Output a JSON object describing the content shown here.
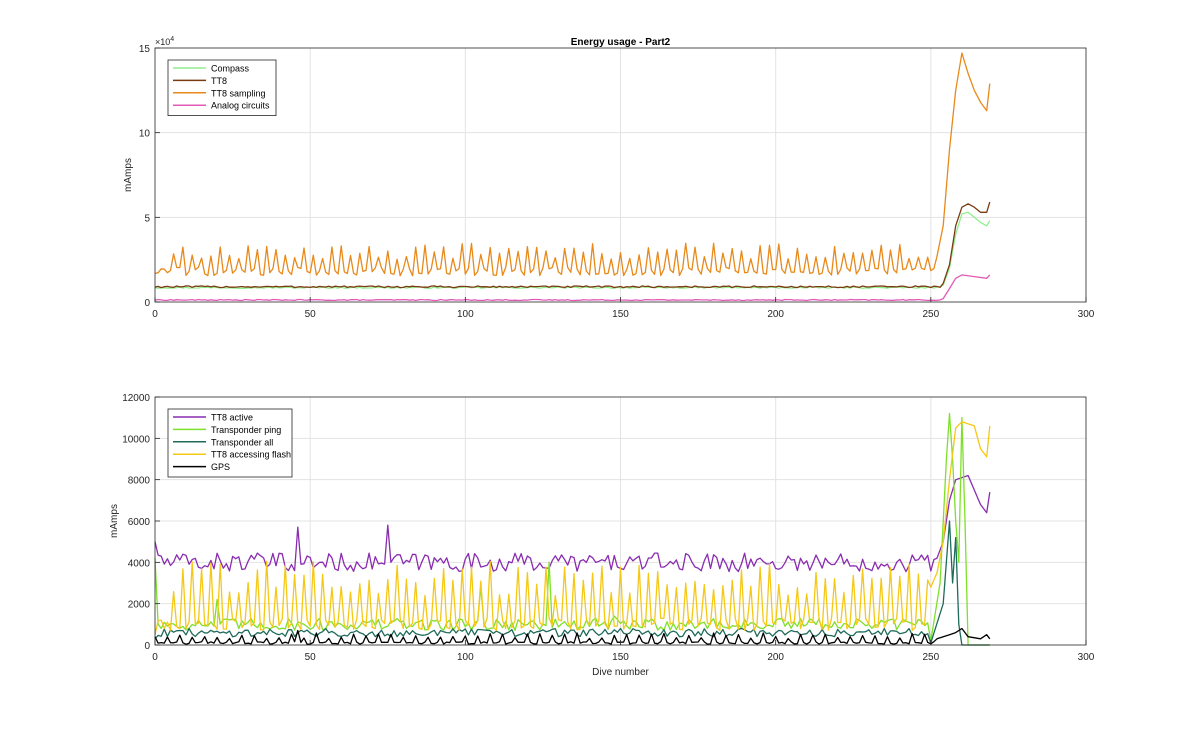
{
  "figure": {
    "title": "Energy usage - Part2"
  },
  "chart_data": [
    {
      "type": "line",
      "title": "Energy usage - Part2",
      "xlabel": "",
      "ylabel": "mAmps",
      "exponent_label": "×10^4",
      "exponent_base": "×10",
      "exponent_power": "4",
      "xlim": [
        0,
        300
      ],
      "ylim": [
        0,
        150000
      ],
      "xticks": [
        0,
        50,
        100,
        150,
        200,
        250,
        300
      ],
      "xtick_labels": [
        "0",
        "50",
        "100",
        "150",
        "200",
        "250",
        "300"
      ],
      "yticks": [
        0,
        50000,
        100000,
        150000
      ],
      "ytick_labels": [
        "0",
        "5",
        "10",
        "15"
      ],
      "grid": true,
      "legend_position": "top-left",
      "x_end": 269,
      "series": [
        {
          "name": "Compass",
          "color": "#90ee90",
          "base": 8500,
          "spike_every": 0,
          "spike_height": 0,
          "noise": 400,
          "tail": [
            [
              254,
              10000
            ],
            [
              256,
              20000
            ],
            [
              258,
              40000
            ],
            [
              260,
              52000
            ],
            [
              262,
              53000
            ],
            [
              264,
              50000
            ],
            [
              266,
              47000
            ],
            [
              268,
              45000
            ],
            [
              269,
              48000
            ]
          ]
        },
        {
          "name": "TT8",
          "color": "#7b3a10",
          "base": 9000,
          "spike_every": 0,
          "spike_height": 0,
          "noise": 500,
          "tail": [
            [
              254,
              11000
            ],
            [
              256,
              22000
            ],
            [
              258,
              45000
            ],
            [
              260,
              56000
            ],
            [
              262,
              58000
            ],
            [
              264,
              56000
            ],
            [
              266,
              53000
            ],
            [
              268,
              53000
            ],
            [
              269,
              59000
            ]
          ]
        },
        {
          "name": "TT8 sampling",
          "color": "#e8891a",
          "base": 18000,
          "spike_every": 3,
          "spike_height": 12000,
          "noise": 2500,
          "tail": [
            [
              252,
              27000
            ],
            [
              254,
              45000
            ],
            [
              256,
              90000
            ],
            [
              258,
              125000
            ],
            [
              260,
              147000
            ],
            [
              262,
              135000
            ],
            [
              264,
              125000
            ],
            [
              266,
              118000
            ],
            [
              268,
              113000
            ],
            [
              269,
              129000
            ]
          ]
        },
        {
          "name": "Analog circuits",
          "color": "#e25ab6",
          "base": 1200,
          "spike_every": 0,
          "spike_height": 0,
          "noise": 300,
          "tail": [
            [
              254,
              2000
            ],
            [
              256,
              8000
            ],
            [
              258,
              14000
            ],
            [
              260,
              16000
            ],
            [
              264,
              15000
            ],
            [
              268,
              14000
            ],
            [
              269,
              16000
            ]
          ]
        }
      ]
    },
    {
      "type": "line",
      "title": "",
      "xlabel": "Dive number",
      "ylabel": "mAmps",
      "xlim": [
        0,
        300
      ],
      "ylim": [
        0,
        12000
      ],
      "xticks": [
        0,
        50,
        100,
        150,
        200,
        250,
        300
      ],
      "xtick_labels": [
        "0",
        "50",
        "100",
        "150",
        "200",
        "250",
        "300"
      ],
      "yticks": [
        0,
        2000,
        4000,
        6000,
        8000,
        10000,
        12000
      ],
      "ytick_labels": [
        "0",
        "2000",
        "4000",
        "6000",
        "8000",
        "10000",
        "12000"
      ],
      "grid": true,
      "legend_position": "top-left",
      "x_end": 269,
      "series": [
        {
          "name": "TT8 active",
          "color": "#8a2cb0",
          "base": 4000,
          "spike_every": 0,
          "spike_height": 0,
          "noise": 450,
          "head": [
            [
              0,
              5000
            ],
            [
              2,
              4300
            ]
          ],
          "peaks": [
            [
              46,
              5700
            ],
            [
              75,
              5800
            ]
          ],
          "tail": [
            [
              252,
              4200
            ],
            [
              254,
              5000
            ],
            [
              256,
              7000
            ],
            [
              258,
              8000
            ],
            [
              260,
              8100
            ],
            [
              262,
              8200
            ],
            [
              264,
              7500
            ],
            [
              266,
              6800
            ],
            [
              268,
              6400
            ],
            [
              269,
              7400
            ]
          ]
        },
        {
          "name": "Transponder ping",
          "color": "#7ee02a",
          "base": 1000,
          "spike_every": 0,
          "spike_height": 0,
          "noise": 300,
          "head": [
            [
              0,
              4200
            ],
            [
              2,
              800
            ]
          ],
          "peaks": [
            [
              20,
              2200
            ],
            [
              105,
              2800
            ],
            [
              127,
              4000
            ],
            [
              148,
              1400
            ],
            [
              177,
              1100
            ]
          ],
          "tail": [
            [
              250,
              200
            ],
            [
              253,
              3000
            ],
            [
              255,
              9000
            ],
            [
              256,
              11200
            ],
            [
              257,
              9000
            ],
            [
              258,
              6000
            ],
            [
              259,
              4000
            ],
            [
              260,
              11000
            ],
            [
              261,
              6000
            ],
            [
              262,
              0
            ],
            [
              269,
              0
            ]
          ]
        },
        {
          "name": "Transponder all",
          "color": "#1e6b5a",
          "base": 600,
          "spike_every": 0,
          "spike_height": 0,
          "noise": 200,
          "head": [
            [
              0,
              300
            ]
          ],
          "peaks": [],
          "tail": [
            [
              250,
              100
            ],
            [
              254,
              2000
            ],
            [
              256,
              6000
            ],
            [
              257,
              3000
            ],
            [
              258,
              5200
            ],
            [
              259,
              1000
            ],
            [
              260,
              0
            ],
            [
              269,
              0
            ]
          ]
        },
        {
          "name": "TT8 accessing flash",
          "color": "#f5c816",
          "base": 1000,
          "spike_every": 3,
          "spike_height": 2200,
          "noise": 300,
          "head": [
            [
              0,
              500
            ]
          ],
          "peaks": [],
          "tail": [
            [
              250,
              2800
            ],
            [
              252,
              3500
            ],
            [
              254,
              5000
            ],
            [
              256,
              8000
            ],
            [
              258,
              10500
            ],
            [
              260,
              10800
            ],
            [
              264,
              10600
            ],
            [
              266,
              9500
            ],
            [
              268,
              9100
            ],
            [
              269,
              10600
            ]
          ]
        },
        {
          "name": "GPS",
          "color": "#000000",
          "base": 100,
          "spike_every": 4,
          "spike_height": 350,
          "noise": 60,
          "head": [
            [
              0,
              400
            ]
          ],
          "peaks": [
            [
              46,
              700
            ]
          ],
          "tail": [
            [
              252,
              300
            ],
            [
              256,
              500
            ],
            [
              258,
              600
            ],
            [
              260,
              800
            ],
            [
              262,
              400
            ],
            [
              266,
              300
            ],
            [
              268,
              500
            ],
            [
              269,
              300
            ]
          ]
        }
      ]
    }
  ]
}
